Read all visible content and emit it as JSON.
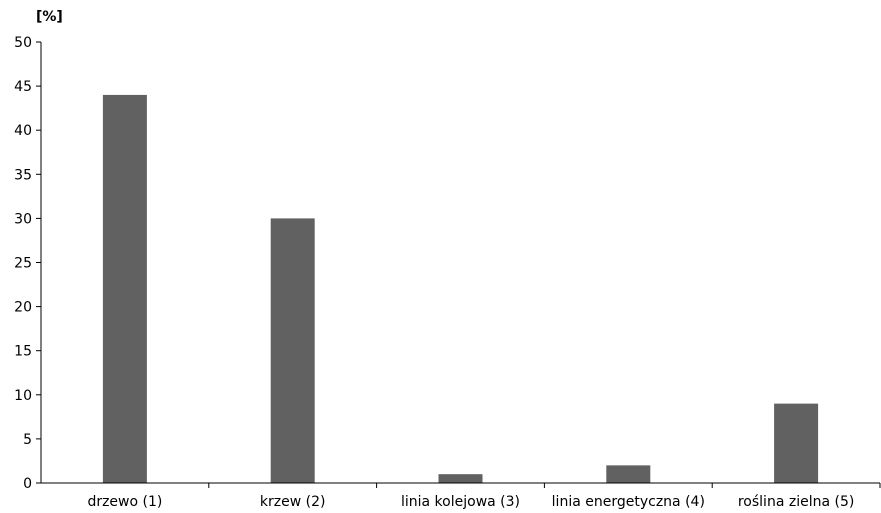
{
  "chart_data": {
    "type": "bar",
    "title": "",
    "xlabel": "",
    "ylabel": "[%]",
    "ylim": [
      0,
      50
    ],
    "yticks": [
      0,
      5,
      10,
      15,
      20,
      25,
      30,
      35,
      40,
      45,
      50
    ],
    "grid": false,
    "legend": "none",
    "bar_color": "#616161",
    "categories": [
      "drzewo (1)",
      "krzew (2)",
      "linia kolejowa (3)",
      "linia energetyczna (4)",
      "roślina zielna (5)"
    ],
    "values": [
      44,
      30,
      1,
      2,
      9
    ]
  }
}
